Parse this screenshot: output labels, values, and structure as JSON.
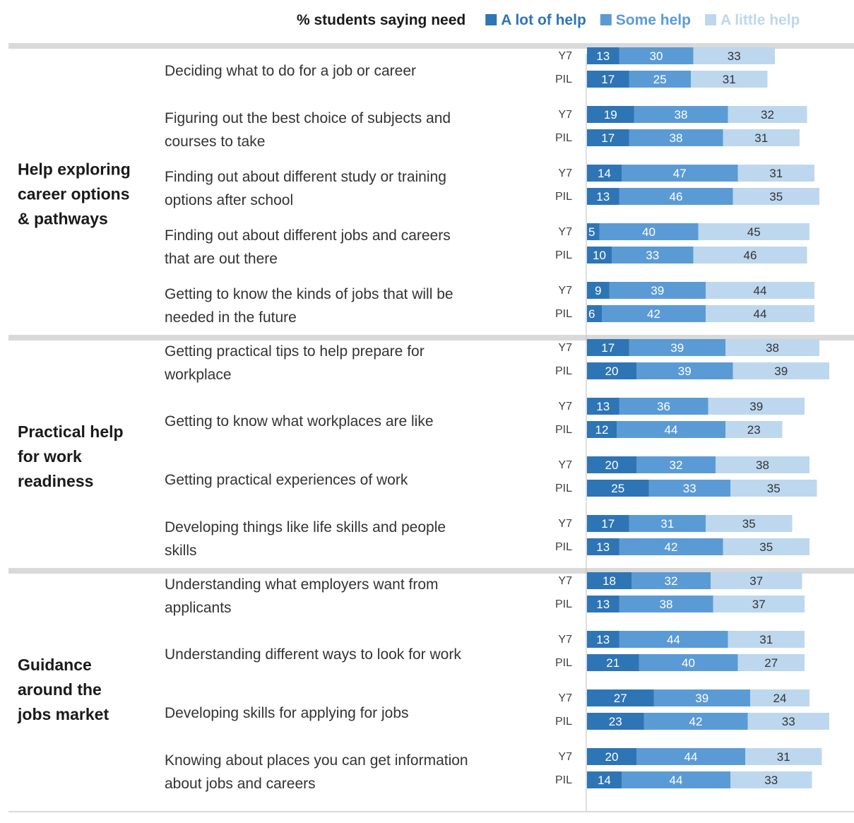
{
  "chart_data": {
    "type": "bar",
    "orientation": "horizontal",
    "stacked": true,
    "legend": {
      "title": "% students saying need",
      "position": "top-right"
    },
    "series": [
      {
        "name": "A lot of help",
        "color": "#2e75b6"
      },
      {
        "name": "Some help",
        "color": "#5b9bd5"
      },
      {
        "name": "A little help",
        "color": "#bdd7ee"
      }
    ],
    "groups": [
      {
        "label_lines": [
          "Help exploring",
          "career options",
          "& pathways"
        ],
        "items": [
          {
            "label_lines": [
              "Deciding what to do for a job or career"
            ],
            "rows": [
              {
                "wave": "Y7",
                "values": [
                  13,
                  30,
                  33
                ]
              },
              {
                "wave": "PIL",
                "values": [
                  17,
                  25,
                  31
                ]
              }
            ]
          },
          {
            "label_lines": [
              "Figuring out the best choice of subjects and",
              "courses to take"
            ],
            "rows": [
              {
                "wave": "Y7",
                "values": [
                  19,
                  38,
                  32
                ]
              },
              {
                "wave": "PIL",
                "values": [
                  17,
                  38,
                  31
                ]
              }
            ]
          },
          {
            "label_lines": [
              "Finding out about different study or training",
              "options after school"
            ],
            "rows": [
              {
                "wave": "Y7",
                "values": [
                  14,
                  47,
                  31
                ]
              },
              {
                "wave": "PIL",
                "values": [
                  13,
                  46,
                  35
                ]
              }
            ]
          },
          {
            "label_lines": [
              "Finding out about different jobs and careers",
              "that are out there"
            ],
            "rows": [
              {
                "wave": "Y7",
                "values": [
                  5,
                  40,
                  45
                ]
              },
              {
                "wave": "PIL",
                "values": [
                  10,
                  33,
                  46
                ]
              }
            ]
          },
          {
            "label_lines": [
              "Getting to know the kinds of jobs that will be",
              "needed in the future"
            ],
            "rows": [
              {
                "wave": "Y7",
                "values": [
                  9,
                  39,
                  44
                ]
              },
              {
                "wave": "PIL",
                "values": [
                  6,
                  42,
                  44
                ]
              }
            ]
          }
        ]
      },
      {
        "label_lines": [
          "Practical help",
          "for work",
          "readiness"
        ],
        "items": [
          {
            "label_lines": [
              "Getting practical tips to help prepare for",
              "workplace"
            ],
            "rows": [
              {
                "wave": "Y7",
                "values": [
                  17,
                  39,
                  38
                ]
              },
              {
                "wave": "PIL",
                "values": [
                  20,
                  39,
                  39
                ]
              }
            ]
          },
          {
            "label_lines": [
              "Getting to know what workplaces are like"
            ],
            "rows": [
              {
                "wave": "Y7",
                "values": [
                  13,
                  36,
                  39
                ]
              },
              {
                "wave": "PIL",
                "values": [
                  12,
                  44,
                  23
                ]
              }
            ]
          },
          {
            "label_lines": [
              "Getting practical experiences of work"
            ],
            "rows": [
              {
                "wave": "Y7",
                "values": [
                  20,
                  32,
                  38
                ]
              },
              {
                "wave": "PIL",
                "values": [
                  25,
                  33,
                  35
                ]
              }
            ]
          },
          {
            "label_lines": [
              "Developing things like life skills and people",
              "skills"
            ],
            "rows": [
              {
                "wave": "Y7",
                "values": [
                  17,
                  31,
                  35
                ]
              },
              {
                "wave": "PIL",
                "values": [
                  13,
                  42,
                  35
                ]
              }
            ]
          }
        ]
      },
      {
        "label_lines": [
          "Guidance",
          "around the",
          "jobs market"
        ],
        "items": [
          {
            "label_lines": [
              "Understanding what employers want from",
              "applicants"
            ],
            "rows": [
              {
                "wave": "Y7",
                "values": [
                  18,
                  32,
                  37
                ]
              },
              {
                "wave": "PIL",
                "values": [
                  13,
                  38,
                  37
                ]
              }
            ]
          },
          {
            "label_lines": [
              "Understanding different ways to look for work"
            ],
            "rows": [
              {
                "wave": "Y7",
                "values": [
                  13,
                  44,
                  31
                ]
              },
              {
                "wave": "PIL",
                "values": [
                  21,
                  40,
                  27
                ]
              }
            ]
          },
          {
            "label_lines": [
              "Developing skills for applying for jobs"
            ],
            "rows": [
              {
                "wave": "Y7",
                "values": [
                  27,
                  39,
                  24
                ]
              },
              {
                "wave": "PIL",
                "values": [
                  23,
                  42,
                  33
                ]
              }
            ]
          },
          {
            "label_lines": [
              "Knowing about places you can get information",
              "about jobs and careers"
            ],
            "rows": [
              {
                "wave": "Y7",
                "values": [
                  20,
                  44,
                  31
                ]
              },
              {
                "wave": "PIL",
                "values": [
                  14,
                  44,
                  33
                ]
              }
            ]
          }
        ]
      }
    ]
  }
}
